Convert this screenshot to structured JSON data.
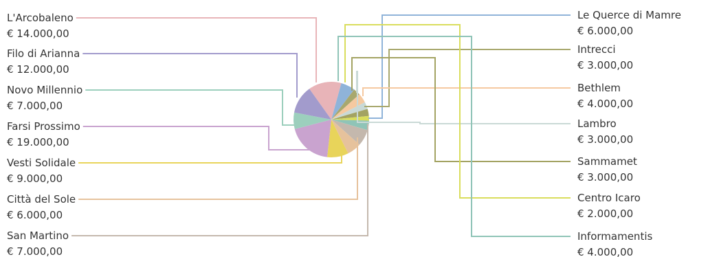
{
  "chart_data": {
    "type": "pie",
    "title": "",
    "legend": "labels with leader lines on both sides",
    "slices": [
      {
        "label": "L'Arcobaleno",
        "value_text": "€ 14.000,00",
        "value": 14000,
        "color": "#e8b4b8"
      },
      {
        "label": "Le Querce di Mamre",
        "value_text": "€ 6.000,00",
        "value": 6000,
        "color": "#8fb3d9"
      },
      {
        "label": "Intrecci",
        "value_text": "€ 3.000,00",
        "value": 3000,
        "color": "#a8a86e"
      },
      {
        "label": "Bethlem",
        "value_text": "€ 4.000,00",
        "value": 4000,
        "color": "#f5c9a0"
      },
      {
        "label": "Lambro",
        "value_text": "€ 3.000,00",
        "value": 3000,
        "color": "#c9d9d6"
      },
      {
        "label": "Sammamet",
        "value_text": "€ 3.000,00",
        "value": 3000,
        "color": "#a3a362"
      },
      {
        "label": "Centro Icaro",
        "value_text": "€ 2.000,00",
        "value": 2000,
        "color": "#d9dd5c"
      },
      {
        "label": "Informamentis",
        "value_text": "€ 4.000,00",
        "value": 4000,
        "color": "#8fc4b7"
      },
      {
        "label": "San Martino",
        "value_text": "€ 7.000,00",
        "value": 7000,
        "color": "#c4b8ad"
      },
      {
        "label": "Città del Sole",
        "value_text": "€ 6.000,00",
        "value": 6000,
        "color": "#e6c29c"
      },
      {
        "label": "Vesti Solidale",
        "value_text": "€ 9.000,00",
        "value": 9000,
        "color": "#e8d45a"
      },
      {
        "label": "Farsi Prossimo",
        "value_text": "€ 19.000,00",
        "value": 19000,
        "color": "#c9a3cf"
      },
      {
        "label": "Novo Millennio",
        "value_text": "€ 7.000,00",
        "value": 7000,
        "color": "#9ccfbd"
      },
      {
        "label": "Filo di Arianna",
        "value_text": "€ 12.000,00",
        "value": 12000,
        "color": "#a29bcc"
      }
    ]
  }
}
